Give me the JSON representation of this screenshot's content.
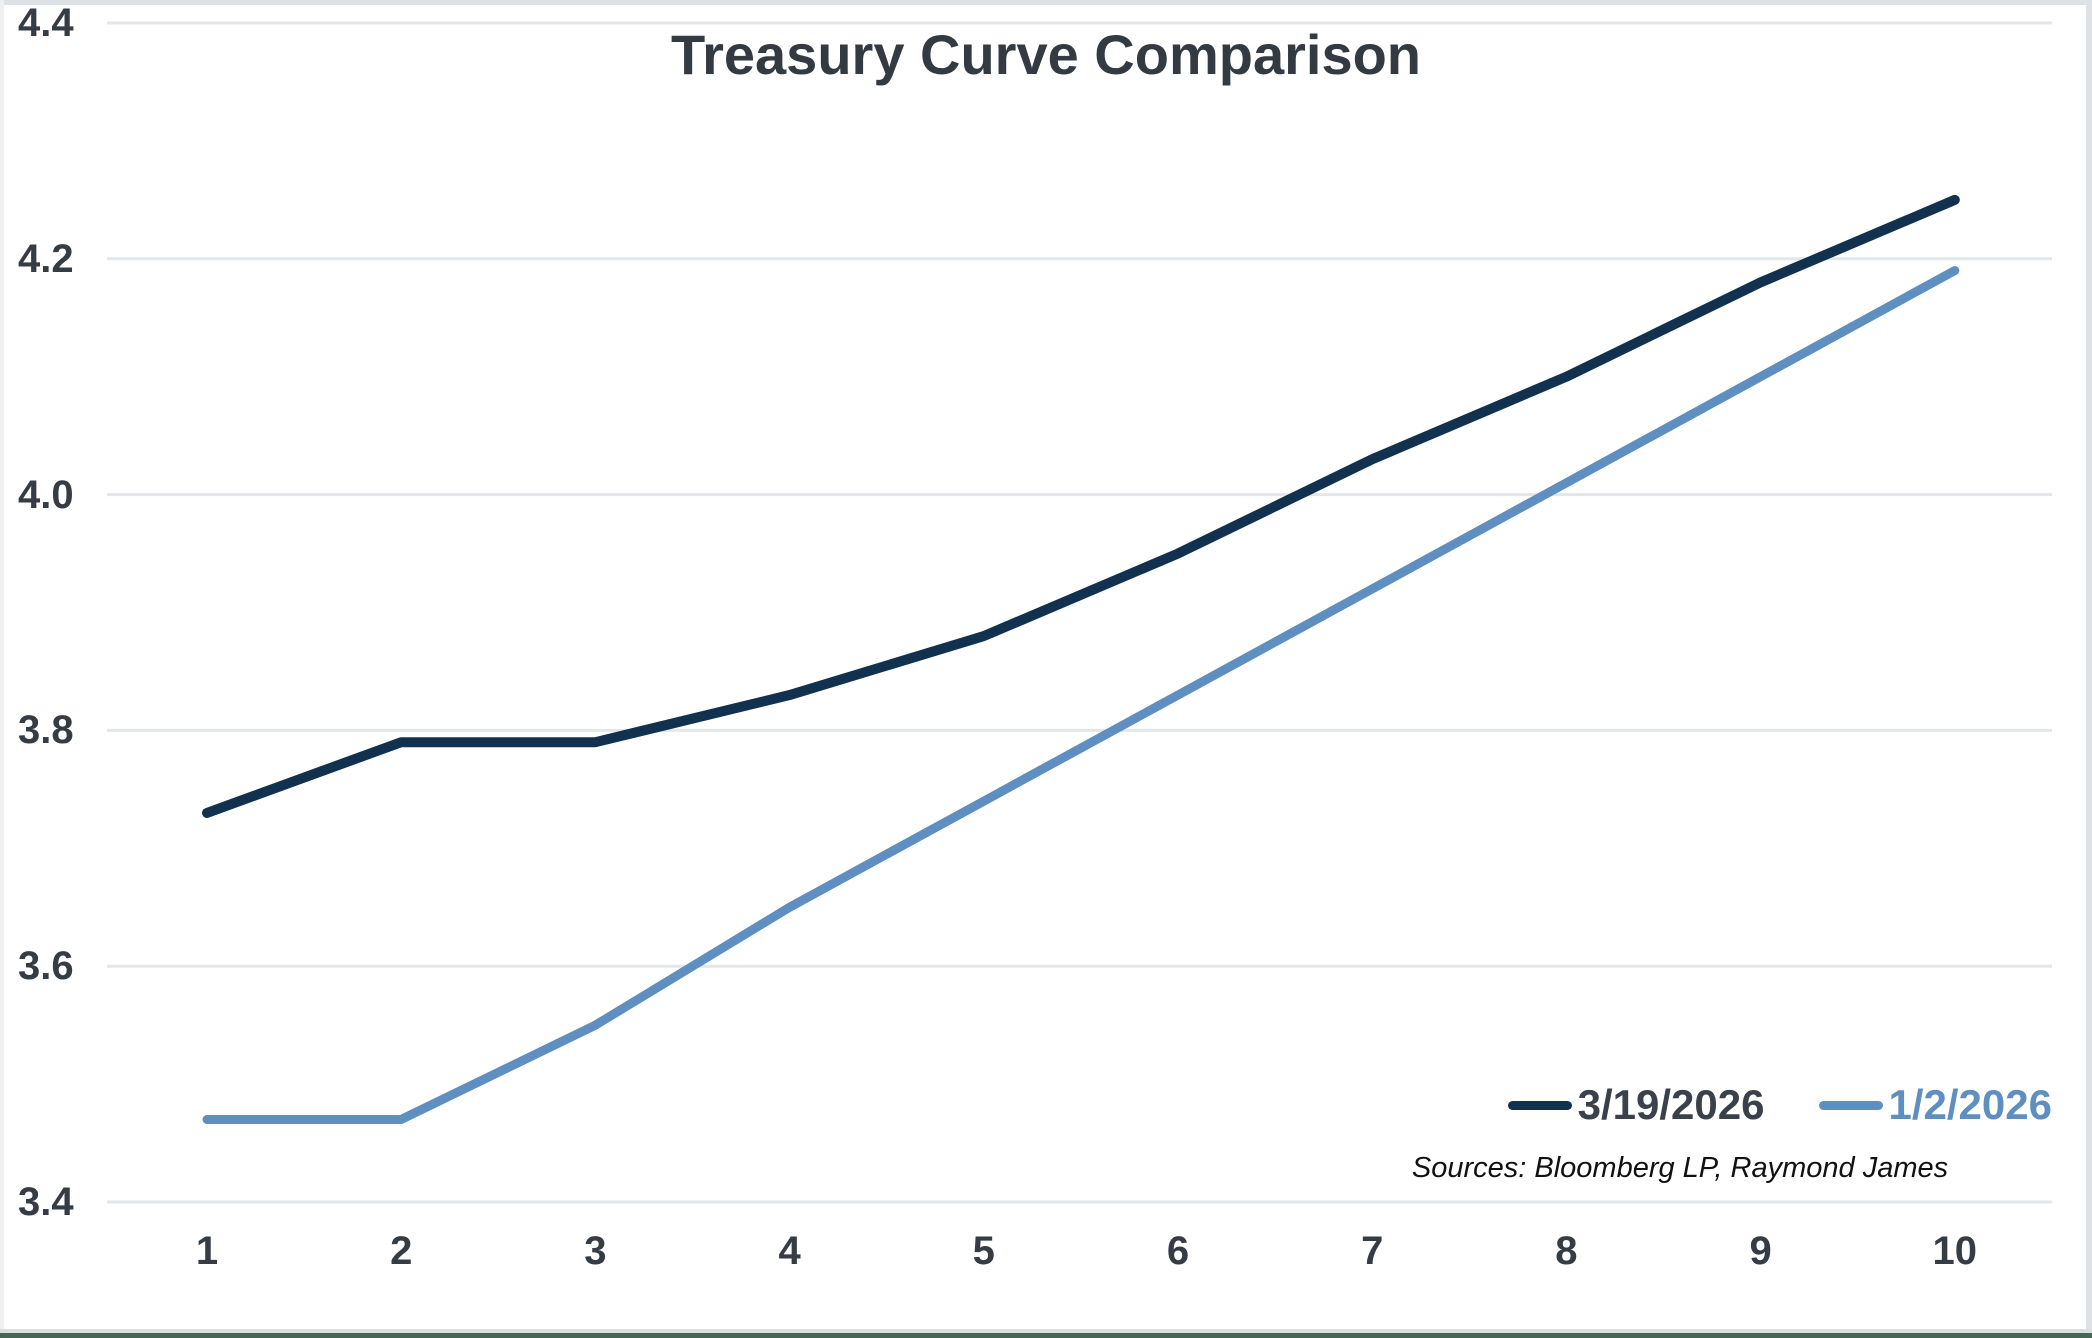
{
  "title": "Treasury Curve Comparison",
  "sources_note": "Sources: Bloomberg LP, Raymond James",
  "colors": {
    "title_text": "#333a42",
    "axis_text": "#353c44",
    "gridline": "#e3e7ea",
    "frame_band": "#dce2e6",
    "bottom_bar_green": "#42694f",
    "background": "#ffffff"
  },
  "chart_data": {
    "type": "line",
    "title": "Treasury Curve Comparison",
    "x": [
      1,
      2,
      3,
      4,
      5,
      6,
      7,
      8,
      9,
      10
    ],
    "x_tick_labels": [
      "1",
      "2",
      "3",
      "4",
      "5",
      "6",
      "7",
      "8",
      "9",
      "10"
    ],
    "series": [
      {
        "name": "3/19/2026",
        "color": "#11314f",
        "label_color": "#3a414a",
        "values": [
          3.73,
          3.79,
          3.79,
          3.83,
          3.88,
          3.95,
          4.03,
          4.1,
          4.18,
          4.25
        ]
      },
      {
        "name": "1/2/2026",
        "color": "#5e8fc0",
        "label_color": "#5e8fc0",
        "values": [
          3.47,
          3.47,
          3.55,
          3.65,
          3.74,
          3.83,
          3.92,
          4.01,
          4.1,
          4.19
        ]
      }
    ],
    "xlabel": "",
    "ylabel": "",
    "ylim": [
      3.4,
      4.4
    ],
    "ytick_labels": [
      "3.4",
      "3.6",
      "3.8",
      "4.0",
      "4.2",
      "4.4"
    ],
    "grid": "horizontal",
    "legend_position": "bottom-right",
    "annotation": "Sources: Bloomberg LP, Raymond James"
  }
}
